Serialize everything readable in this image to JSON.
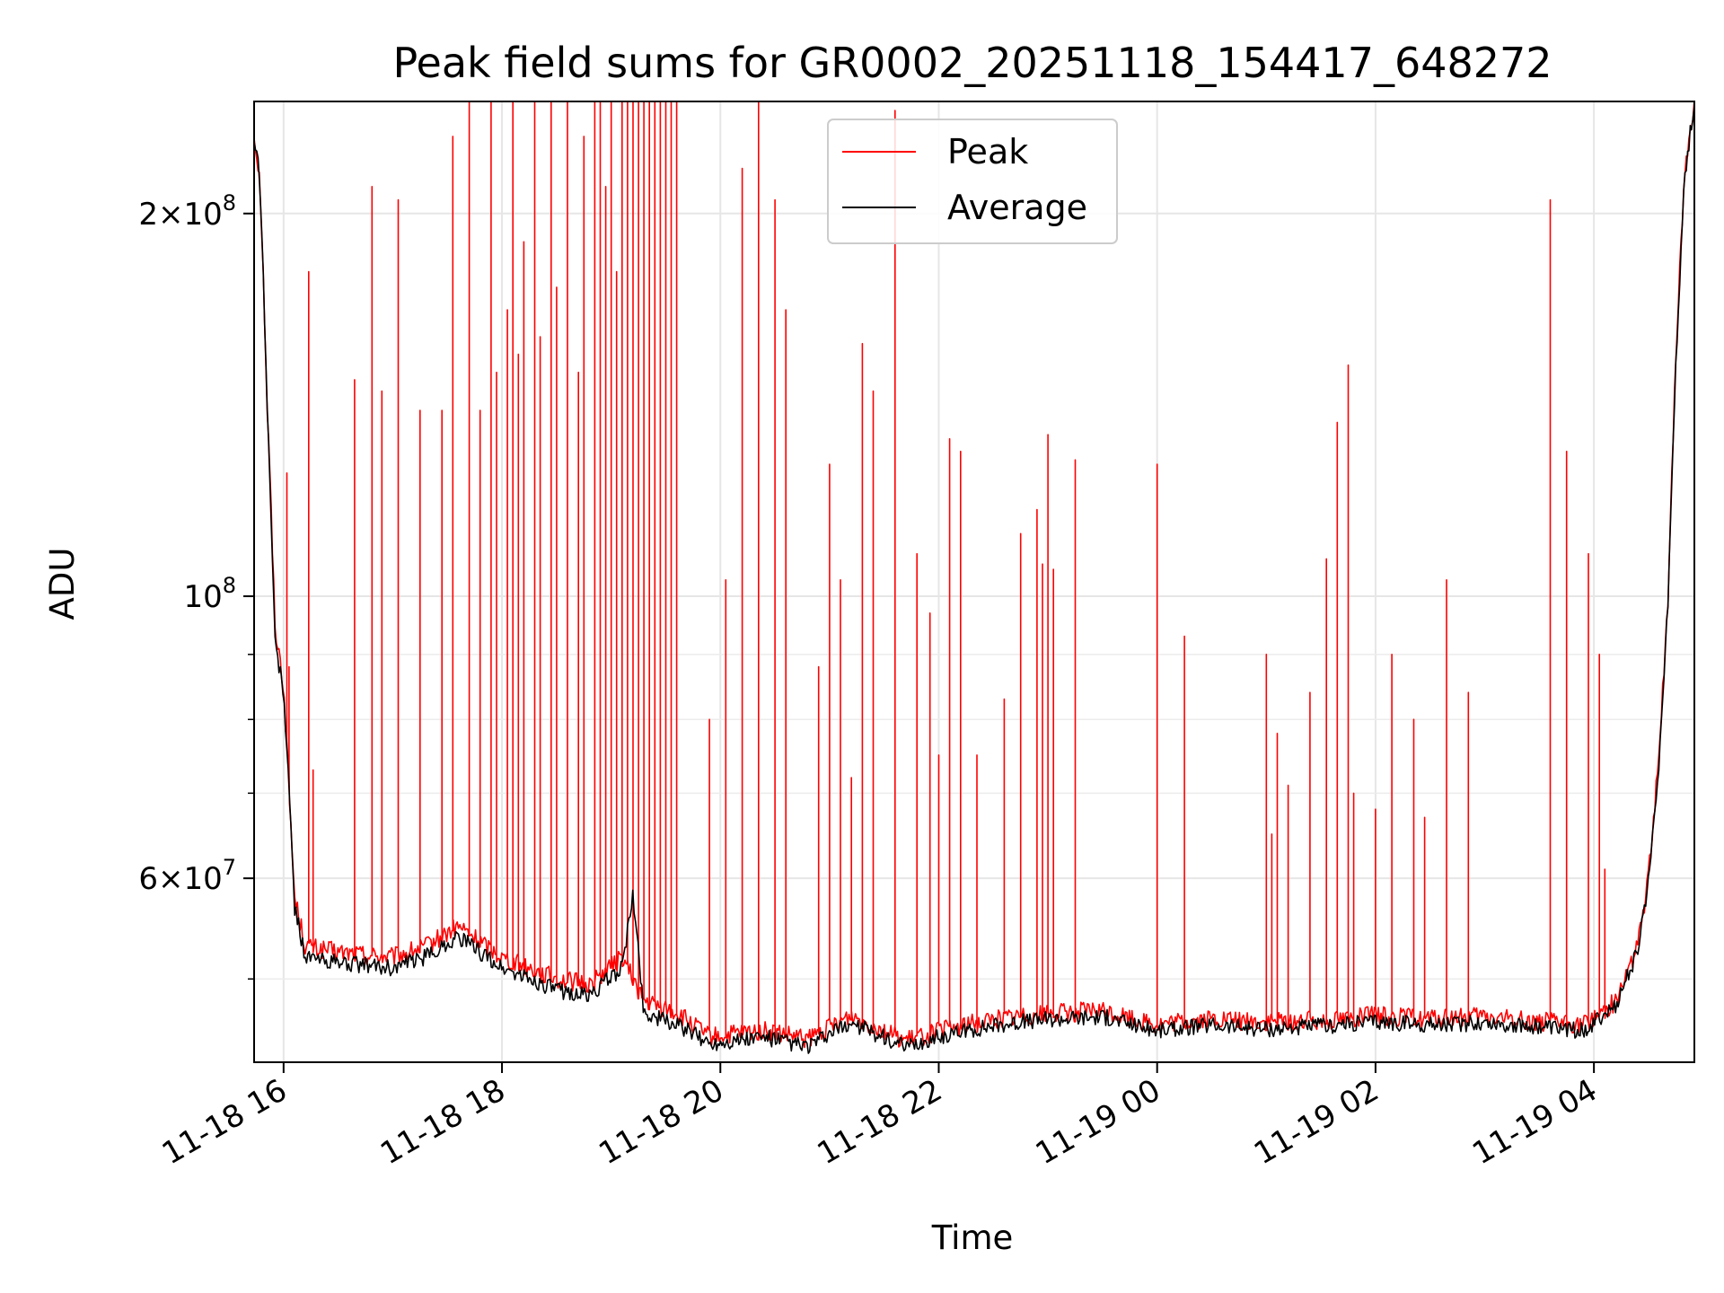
{
  "chart_data": {
    "type": "line",
    "title": "Peak field sums for GR0002_20251118_154417_648272",
    "xlabel": "Time",
    "ylabel": "ADU",
    "yscale": "log",
    "ylim": [
      43000000,
      245000000
    ],
    "xlim_hours": [
      15.73,
      28.92
    ],
    "grid": true,
    "legend_position": "upper-center",
    "x_ticks": [
      {
        "hour": 16,
        "label": "11-18 16"
      },
      {
        "hour": 18,
        "label": "11-18 18"
      },
      {
        "hour": 20,
        "label": "11-18 20"
      },
      {
        "hour": 22,
        "label": "11-18 22"
      },
      {
        "hour": 24,
        "label": "11-19 00"
      },
      {
        "hour": 26,
        "label": "11-19 02"
      },
      {
        "hour": 28,
        "label": "11-19 04"
      }
    ],
    "y_ticks_major": [
      {
        "value": 60000000,
        "base": "6",
        "exp": "7"
      },
      {
        "value": 100000000,
        "base": "10",
        "exp": "8"
      },
      {
        "value": 200000000,
        "base": "2",
        "exp": "8"
      }
    ],
    "y_ticks_minor": [
      50000000,
      70000000,
      80000000,
      90000000,
      300000000,
      400000000
    ],
    "series": [
      {
        "name": "Peak",
        "color": "#ff0000",
        "baseline": [
          [
            15.73,
            230000000
          ],
          [
            15.78,
            215000000
          ],
          [
            15.85,
            140000000
          ],
          [
            15.92,
            95000000
          ],
          [
            16.0,
            85000000
          ],
          [
            16.05,
            70000000
          ],
          [
            16.1,
            58000000
          ],
          [
            16.2,
            53000000
          ],
          [
            16.5,
            52500000
          ],
          [
            17.0,
            52000000
          ],
          [
            17.3,
            53000000
          ],
          [
            17.6,
            55000000
          ],
          [
            18.0,
            52000000
          ],
          [
            18.5,
            50000000
          ],
          [
            18.8,
            49500000
          ],
          [
            19.1,
            52000000
          ],
          [
            19.3,
            48000000
          ],
          [
            19.6,
            47000000
          ],
          [
            19.9,
            45000000
          ],
          [
            20.4,
            45500000
          ],
          [
            20.8,
            44800000
          ],
          [
            21.2,
            46800000
          ],
          [
            21.7,
            44700000
          ],
          [
            22.0,
            45500000
          ],
          [
            22.5,
            46500000
          ],
          [
            23.0,
            47000000
          ],
          [
            23.5,
            47200000
          ],
          [
            24.0,
            46000000
          ],
          [
            24.5,
            46500000
          ],
          [
            25.0,
            46200000
          ],
          [
            25.5,
            46400000
          ],
          [
            26.0,
            46800000
          ],
          [
            26.5,
            46500000
          ],
          [
            27.0,
            46700000
          ],
          [
            27.5,
            46300000
          ],
          [
            27.9,
            46000000
          ],
          [
            28.2,
            48000000
          ],
          [
            28.4,
            53000000
          ],
          [
            28.5,
            60000000
          ],
          [
            28.6,
            75000000
          ],
          [
            28.68,
            100000000
          ],
          [
            28.76,
            160000000
          ],
          [
            28.83,
            215000000
          ],
          [
            28.92,
            245000000
          ]
        ],
        "spikes": [
          [
            16.03,
            125000000
          ],
          [
            16.05,
            88000000
          ],
          [
            16.23,
            180000000
          ],
          [
            16.27,
            73000000
          ],
          [
            16.65,
            148000000
          ],
          [
            16.81,
            210000000
          ],
          [
            16.9,
            145000000
          ],
          [
            17.05,
            205000000
          ],
          [
            17.25,
            140000000
          ],
          [
            17.45,
            140000000
          ],
          [
            17.55,
            230000000
          ],
          [
            17.7,
            245000000
          ],
          [
            17.8,
            140000000
          ],
          [
            17.9,
            245000000
          ],
          [
            17.95,
            150000000
          ],
          [
            18.05,
            168000000
          ],
          [
            18.1,
            245000000
          ],
          [
            18.15,
            155000000
          ],
          [
            18.2,
            190000000
          ],
          [
            18.3,
            245000000
          ],
          [
            18.35,
            160000000
          ],
          [
            18.45,
            245000000
          ],
          [
            18.5,
            175000000
          ],
          [
            18.6,
            245000000
          ],
          [
            18.7,
            150000000
          ],
          [
            18.75,
            230000000
          ],
          [
            18.85,
            245000000
          ],
          [
            18.9,
            245000000
          ],
          [
            18.95,
            210000000
          ],
          [
            19.0,
            245000000
          ],
          [
            19.05,
            180000000
          ],
          [
            19.1,
            245000000
          ],
          [
            19.15,
            245000000
          ],
          [
            19.2,
            245000000
          ],
          [
            19.25,
            245000000
          ],
          [
            19.3,
            245000000
          ],
          [
            19.35,
            245000000
          ],
          [
            19.4,
            245000000
          ],
          [
            19.45,
            245000000
          ],
          [
            19.5,
            245000000
          ],
          [
            19.55,
            245000000
          ],
          [
            19.6,
            245000000
          ],
          [
            19.9,
            80000000
          ],
          [
            20.05,
            103000000
          ],
          [
            20.2,
            217000000
          ],
          [
            20.35,
            245000000
          ],
          [
            20.5,
            205000000
          ],
          [
            20.6,
            168000000
          ],
          [
            20.9,
            88000000
          ],
          [
            21.0,
            127000000
          ],
          [
            21.1,
            103000000
          ],
          [
            21.2,
            72000000
          ],
          [
            21.3,
            158000000
          ],
          [
            21.4,
            145000000
          ],
          [
            21.6,
            241000000
          ],
          [
            21.8,
            108000000
          ],
          [
            21.92,
            97000000
          ],
          [
            22.0,
            75000000
          ],
          [
            22.1,
            133000000
          ],
          [
            22.2,
            130000000
          ],
          [
            22.35,
            75000000
          ],
          [
            22.6,
            83000000
          ],
          [
            22.75,
            112000000
          ],
          [
            22.9,
            117000000
          ],
          [
            22.95,
            106000000
          ],
          [
            23.0,
            134000000
          ],
          [
            23.05,
            105000000
          ],
          [
            23.25,
            128000000
          ],
          [
            24.0,
            127000000
          ],
          [
            24.25,
            93000000
          ],
          [
            25.0,
            90000000
          ],
          [
            25.05,
            65000000
          ],
          [
            25.1,
            78000000
          ],
          [
            25.2,
            71000000
          ],
          [
            25.4,
            84000000
          ],
          [
            25.55,
            107000000
          ],
          [
            25.65,
            137000000
          ],
          [
            25.75,
            152000000
          ],
          [
            25.8,
            70000000
          ],
          [
            26.0,
            68000000
          ],
          [
            26.15,
            90000000
          ],
          [
            26.35,
            80000000
          ],
          [
            26.45,
            67000000
          ],
          [
            26.65,
            103000000
          ],
          [
            26.85,
            84000000
          ],
          [
            27.6,
            205000000
          ],
          [
            27.75,
            130000000
          ],
          [
            27.95,
            108000000
          ],
          [
            28.05,
            90000000
          ],
          [
            28.1,
            61000000
          ]
        ]
      },
      {
        "name": "Average",
        "color": "#000000",
        "points": [
          [
            15.73,
            230000000
          ],
          [
            15.78,
            215000000
          ],
          [
            15.85,
            140000000
          ],
          [
            15.92,
            92000000
          ],
          [
            16.0,
            84000000
          ],
          [
            16.05,
            70000000
          ],
          [
            16.1,
            57000000
          ],
          [
            16.2,
            52000000
          ],
          [
            16.5,
            51500000
          ],
          [
            17.0,
            51000000
          ],
          [
            17.3,
            52000000
          ],
          [
            17.6,
            54000000
          ],
          [
            18.0,
            51000000
          ],
          [
            18.5,
            49000000
          ],
          [
            18.8,
            48500000
          ],
          [
            19.1,
            51000000
          ],
          [
            19.2,
            58000000
          ],
          [
            19.3,
            47000000
          ],
          [
            19.6,
            46000000
          ],
          [
            19.9,
            44500000
          ],
          [
            20.4,
            45000000
          ],
          [
            20.8,
            44200000
          ],
          [
            21.2,
            46200000
          ],
          [
            21.7,
            44100000
          ],
          [
            22.0,
            45000000
          ],
          [
            22.5,
            46000000
          ],
          [
            23.0,
            46500000
          ],
          [
            23.5,
            46700000
          ],
          [
            24.0,
            45500000
          ],
          [
            24.5,
            46000000
          ],
          [
            25.0,
            45700000
          ],
          [
            25.5,
            45900000
          ],
          [
            26.0,
            46300000
          ],
          [
            26.5,
            46000000
          ],
          [
            27.0,
            46200000
          ],
          [
            27.5,
            45800000
          ],
          [
            27.9,
            45500000
          ],
          [
            28.2,
            47500000
          ],
          [
            28.4,
            52500000
          ],
          [
            28.5,
            59500000
          ],
          [
            28.6,
            74500000
          ],
          [
            28.68,
            99000000
          ],
          [
            28.76,
            158000000
          ],
          [
            28.83,
            213000000
          ],
          [
            28.92,
            245000000
          ]
        ]
      }
    ]
  }
}
